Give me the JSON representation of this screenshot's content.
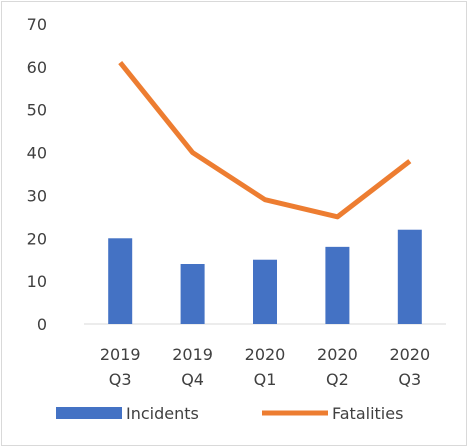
{
  "chart_data": {
    "type": "bar+line",
    "categories": [
      [
        "2019",
        "Q3"
      ],
      [
        "2019",
        "Q4"
      ],
      [
        "2020",
        "Q1"
      ],
      [
        "2020",
        "Q2"
      ],
      [
        "2020",
        "Q3"
      ]
    ],
    "series": [
      {
        "name": "Incidents",
        "kind": "bar",
        "color": "#4472C4",
        "values": [
          20,
          14,
          15,
          18,
          22
        ]
      },
      {
        "name": "Fatalities",
        "kind": "line",
        "color": "#ED7D31",
        "values": [
          61,
          40,
          29,
          25,
          38
        ]
      }
    ],
    "ylim": [
      0,
      70
    ],
    "yticks": [
      0,
      10,
      20,
      30,
      40,
      50,
      60,
      70
    ],
    "grid": false,
    "legend": "bottom"
  }
}
